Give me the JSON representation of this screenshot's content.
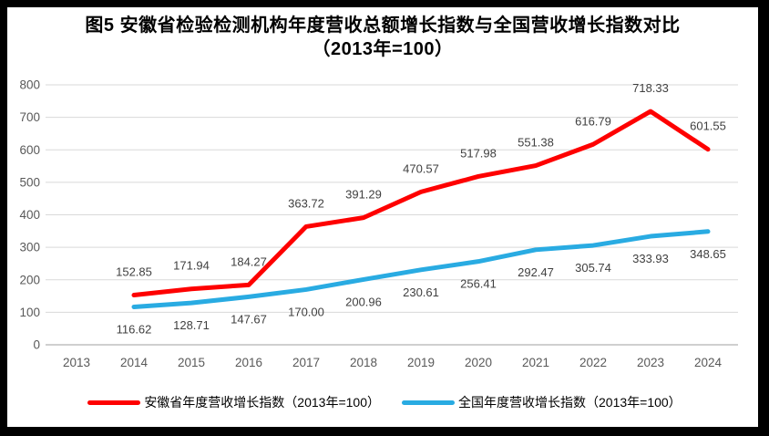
{
  "title": {
    "line1": "图5  安徽省检验检测机构年度营收总额增长指数与全国营收增长指数对比",
    "line2": "（2013年=100）"
  },
  "chart_data": {
    "type": "line",
    "categories": [
      "2013",
      "2014",
      "2015",
      "2016",
      "2017",
      "2018",
      "2019",
      "2020",
      "2021",
      "2022",
      "2023",
      "2024"
    ],
    "yticks": [
      0,
      100,
      200,
      300,
      400,
      500,
      600,
      700,
      800
    ],
    "ylim": [
      0,
      800
    ],
    "grid": "horizontal",
    "legend_position": "bottom",
    "series": [
      {
        "id": "anhui",
        "name": "安徽省年度营收增长指数（2013年=100）",
        "color": "#FE0000",
        "label_position": "above",
        "values": [
          null,
          152.85,
          171.94,
          184.27,
          363.72,
          391.29,
          470.57,
          517.98,
          551.38,
          616.79,
          718.33,
          601.55
        ]
      },
      {
        "id": "national",
        "name": "全国年度营收增长指数（2013年=100）",
        "color": "#29ABE2",
        "label_position": "below",
        "values": [
          null,
          116.62,
          128.71,
          147.67,
          170.0,
          200.96,
          230.61,
          256.41,
          292.47,
          305.74,
          333.93,
          348.65
        ]
      }
    ],
    "colors": {
      "gridline": "#D9D9D9",
      "axis_line": "#BFBFBF",
      "axis_label": "#595959",
      "data_label": "#404040",
      "border": "#000000"
    }
  }
}
